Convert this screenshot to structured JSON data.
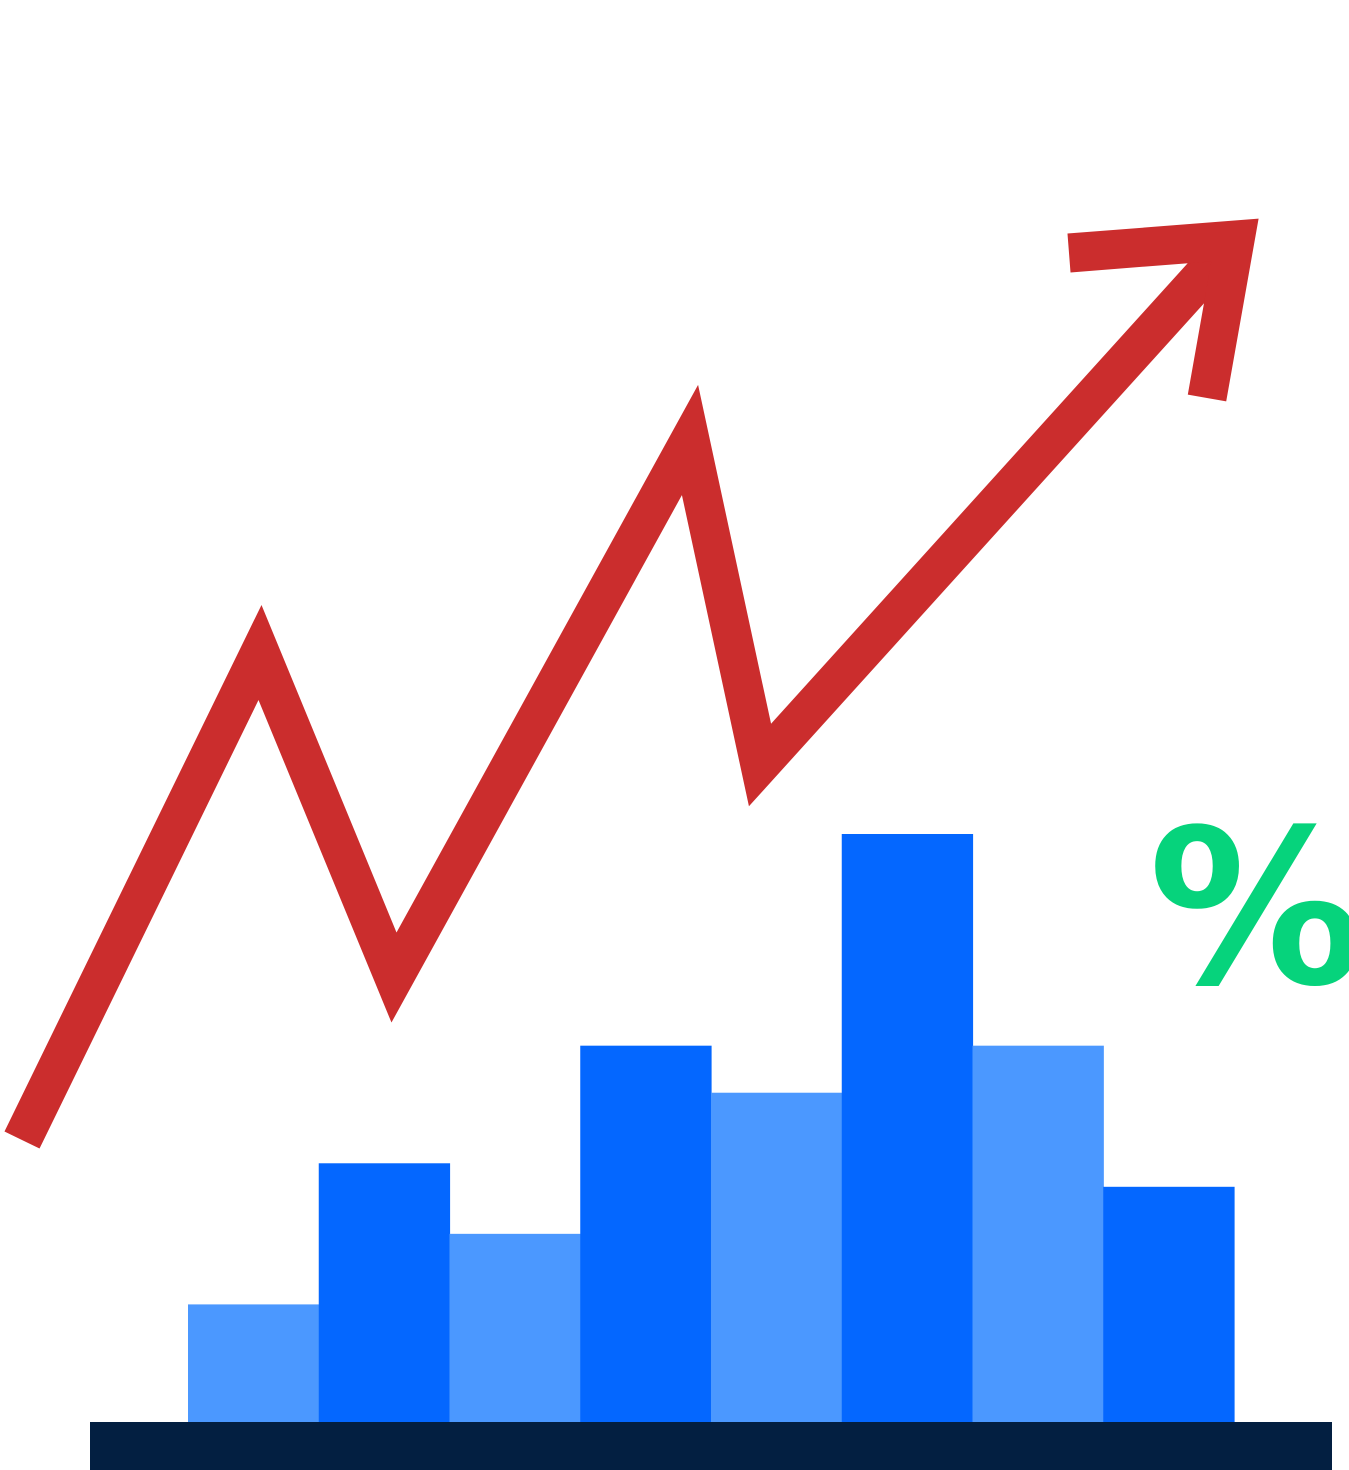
{
  "chart_data": {
    "type": "bar",
    "categories": [
      "",
      "",
      "",
      "",
      "",
      "",
      "",
      ""
    ],
    "values": [
      1.0,
      2.2,
      1.6,
      3.2,
      2.8,
      5.0,
      3.2,
      2.0
    ],
    "bar_colors": [
      "#4b98ff",
      "#0467ff",
      "#4b98ff",
      "#0467ff",
      "#4b98ff",
      "#0467ff",
      "#4b98ff",
      "#0467ff"
    ],
    "ylim": [
      0,
      5
    ],
    "grid": false,
    "legend": "none",
    "trend_line": {
      "type": "line",
      "values": [
        0.0,
        3.9,
        1.3,
        5.6,
        3.0,
        7.2
      ],
      "ylim": [
        0,
        7.2
      ],
      "color": "#cb2d2d",
      "arrowhead": true
    },
    "baseline_color": "#031f41",
    "annotation": {
      "text": "%",
      "color": "#06d37c"
    }
  }
}
